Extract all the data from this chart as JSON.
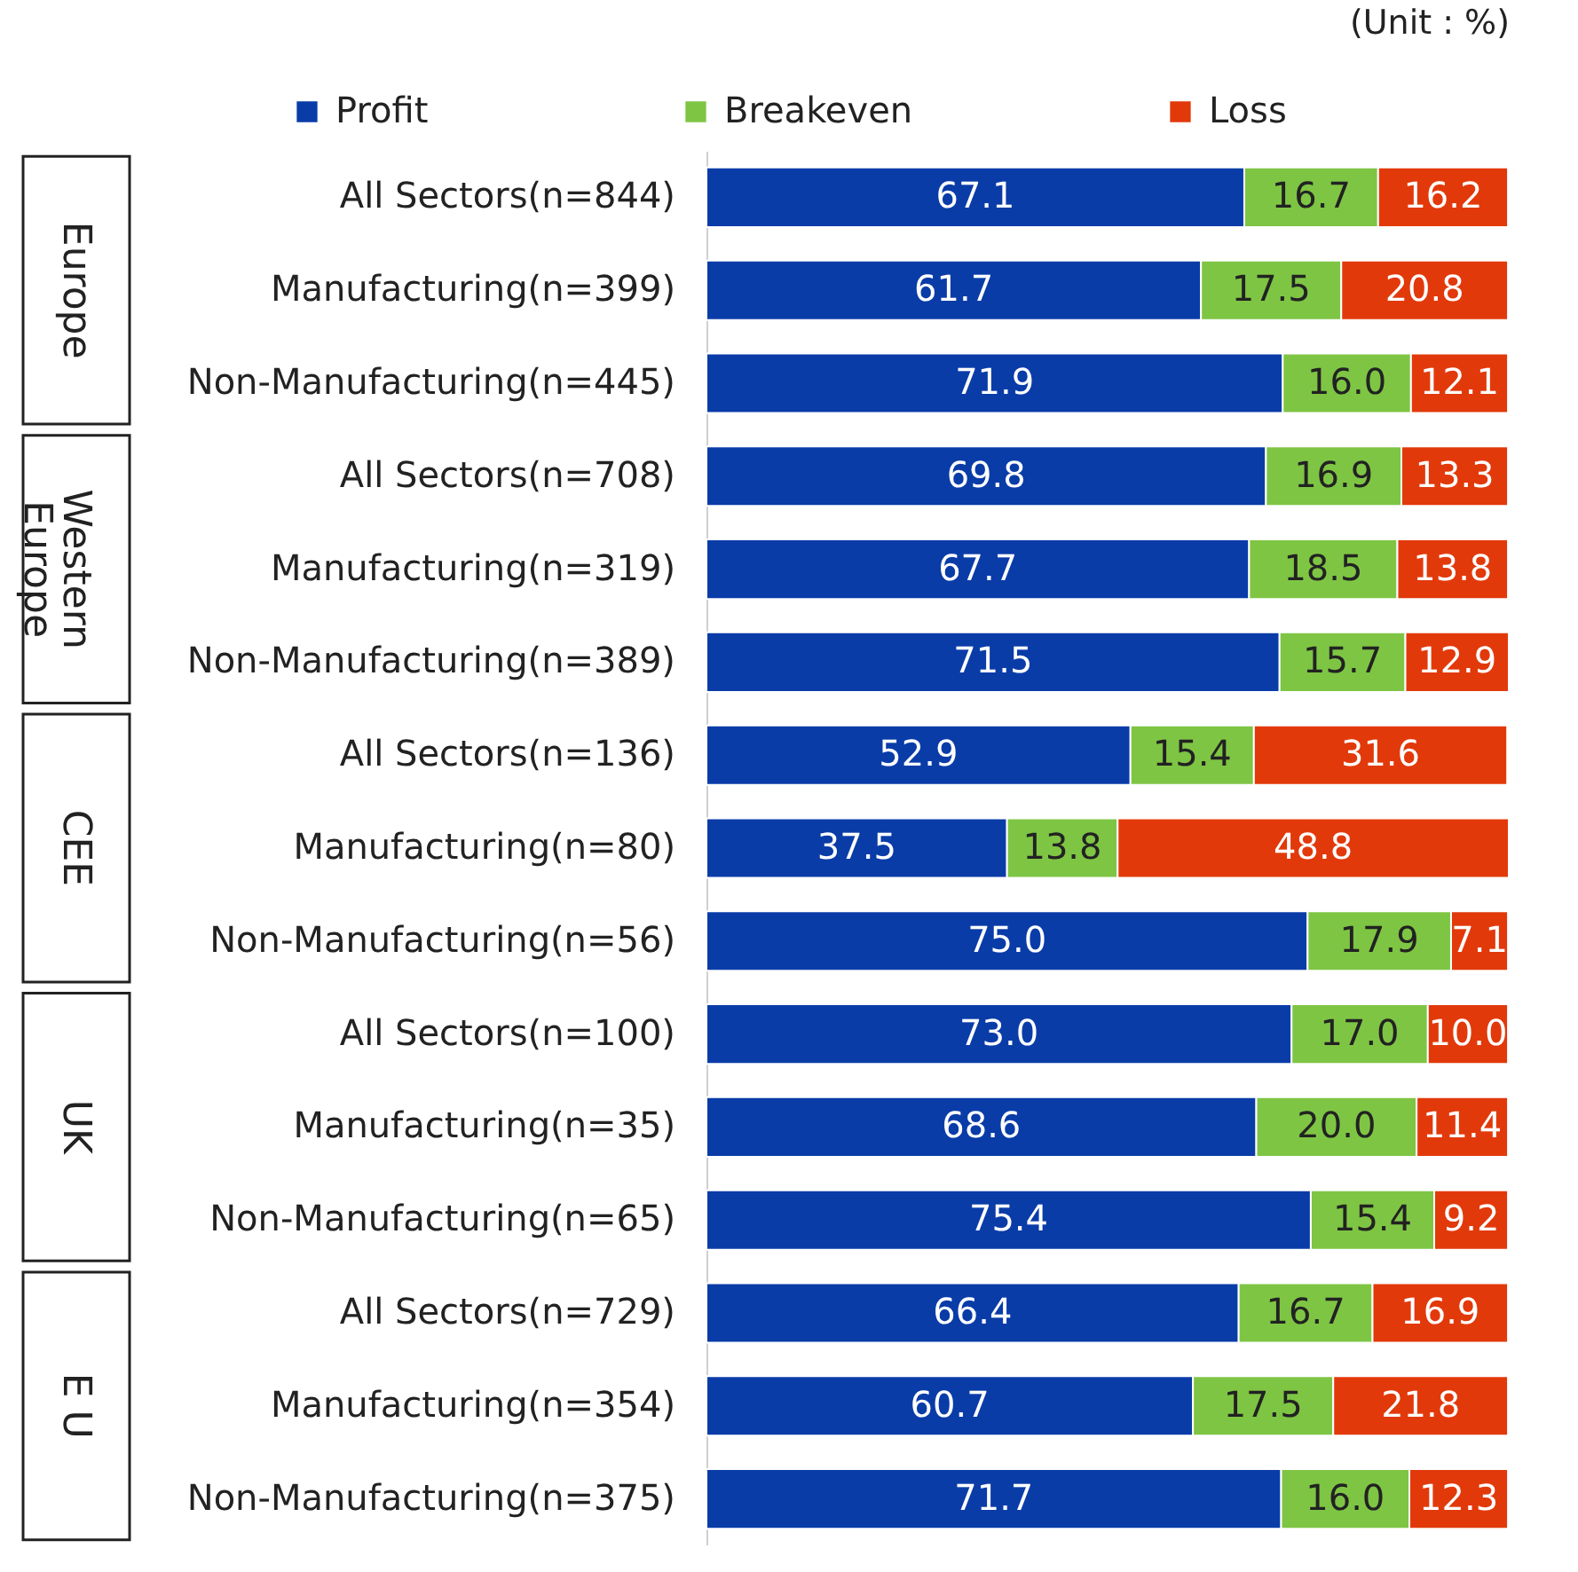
{
  "chart_data": {
    "type": "bar",
    "orientation": "horizontal",
    "stacked": true,
    "legend": "top",
    "annotations": [
      "(Unit : %)",
      "Europe",
      "Western Europe",
      "CEE",
      "UK",
      "E U"
    ],
    "categories": [
      "All Sectors(n=844)",
      "Manufacturing(n=399)",
      "Non-Manufacturing(n=445)",
      "All Sectors(n=708)",
      "Manufacturing(n=319)",
      "Non-Manufacturing(n=389)",
      "All Sectors(n=136)",
      "Manufacturing(n=80)",
      "Non-Manufacturing(n=56)",
      "All Sectors(n=100)",
      "Manufacturing(n=35)",
      "Non-Manufacturing(n=65)",
      "All Sectors(n=729)",
      "Manufacturing(n=354)",
      "Non-Manufacturing(n=375)"
    ],
    "series": [
      {
        "name": "Profit",
        "color": "#0a3ca8",
        "values": [
          67.1,
          61.7,
          71.9,
          69.8,
          67.7,
          71.5,
          52.9,
          37.5,
          75.0,
          73.0,
          68.6,
          75.4,
          66.4,
          60.7,
          71.7
        ],
        "value_labels": [
          "67.1",
          "61.7",
          "71.9",
          "69.8",
          "67.7",
          "71.5",
          "52.9",
          "37.5",
          "75.0",
          "73.0",
          "68.6",
          "75.4",
          "66.4",
          "60.7",
          "71.7"
        ]
      },
      {
        "name": "Breakeven",
        "color": "#7ec544",
        "values": [
          16.7,
          17.5,
          16.0,
          16.9,
          18.5,
          15.7,
          15.4,
          13.8,
          17.9,
          17.0,
          20.0,
          15.4,
          16.7,
          17.5,
          16.0
        ],
        "value_labels": [
          "16.7",
          "17.5",
          "16.0",
          "16.9",
          "18.5",
          "15.7",
          "15.4",
          "13.8",
          "17.9",
          "17.0",
          "20.0",
          "15.4",
          "16.7",
          "17.5",
          "16.0"
        ]
      },
      {
        "name": "Loss",
        "color": "#e2390b",
        "values": [
          16.2,
          20.8,
          12.1,
          13.3,
          13.8,
          12.9,
          31.6,
          48.8,
          7.1,
          10.0,
          11.4,
          9.2,
          16.9,
          21.8,
          12.3
        ],
        "value_labels": [
          "16.2",
          "20.8",
          "12.1",
          "13.3",
          "13.8",
          "12.9",
          "31.6",
          "48.8",
          "7.1",
          "10.0",
          "11.4",
          "9.2",
          "16.9",
          "21.8",
          "12.3"
        ]
      }
    ]
  }
}
